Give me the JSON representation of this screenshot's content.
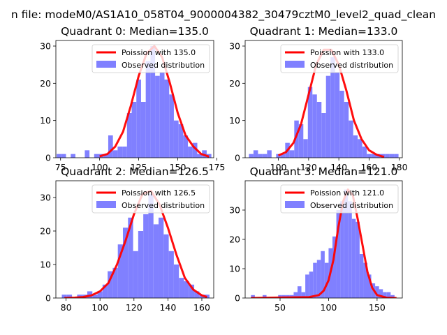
{
  "figure_title": "n file: modeM0/AS1A10_058T04_9000004382_30479cztM0_level2_quad_clean",
  "colors": {
    "hist": "#8080ff",
    "curve": "#ff0000",
    "axis": "#000000"
  },
  "chart_data": [
    {
      "type": "bar",
      "title": "Quadrant 0: Median=135.0",
      "xlim": [
        72,
        173
      ],
      "ylim": [
        0,
        31.5
      ],
      "xticks": [
        75,
        100,
        125,
        150,
        175
      ],
      "yticks": [
        0,
        10,
        20,
        30
      ],
      "legend_position": "top-right",
      "series": [
        {
          "name": "Poission with 135.0",
          "kind": "line",
          "x": [
            100,
            105,
            110,
            115,
            120,
            125,
            130,
            135,
            140,
            145,
            150,
            155,
            160,
            165,
            170
          ],
          "y": [
            0.4,
            1,
            3,
            7,
            14,
            22,
            28,
            30,
            27,
            20,
            12,
            6,
            3,
            1,
            0.3
          ]
        },
        {
          "name": "Observed distribution",
          "kind": "histogram",
          "bins": [
            [
              74,
              1
            ],
            [
              77,
              1
            ],
            [
              80,
              0
            ],
            [
              83,
              1
            ],
            [
              86,
              0
            ],
            [
              89,
              0
            ],
            [
              92,
              2
            ],
            [
              95,
              0
            ],
            [
              98,
              1
            ],
            [
              101,
              1
            ],
            [
              104,
              1
            ],
            [
              107,
              6
            ],
            [
              110,
              2
            ],
            [
              113,
              3
            ],
            [
              116,
              3
            ],
            [
              119,
              12
            ],
            [
              122,
              15
            ],
            [
              125,
              21
            ],
            [
              128,
              15
            ],
            [
              131,
              26
            ],
            [
              134,
              30
            ],
            [
              137,
              22
            ],
            [
              140,
              23
            ],
            [
              143,
              21
            ],
            [
              146,
              17
            ],
            [
              149,
              10
            ],
            [
              152,
              9
            ],
            [
              155,
              6
            ],
            [
              158,
              3
            ],
            [
              161,
              4
            ],
            [
              164,
              1
            ],
            [
              167,
              2
            ],
            [
              170,
              1
            ]
          ]
        }
      ]
    },
    {
      "type": "bar",
      "title": "Quadrant 1: Median=133.0",
      "xlim": [
        78,
        182
      ],
      "ylim": [
        0,
        31.5
      ],
      "xticks": [
        100,
        120,
        140,
        160,
        180
      ],
      "yticks": [
        0,
        10,
        20,
        30
      ],
      "legend_position": "top-right",
      "series": [
        {
          "name": "Poission with 133.0",
          "kind": "line",
          "x": [
            100,
            105,
            110,
            115,
            120,
            125,
            130,
            135,
            140,
            145,
            150,
            155,
            160,
            165,
            170
          ],
          "y": [
            0.6,
            1.5,
            4,
            9,
            17,
            25,
            29,
            29,
            25,
            18,
            10,
            5,
            2,
            0.8,
            0.2
          ]
        },
        {
          "name": "Observed distribution",
          "kind": "histogram",
          "bins": [
            [
              82,
              1
            ],
            [
              85,
              2
            ],
            [
              88,
              1
            ],
            [
              91,
              1
            ],
            [
              94,
              2
            ],
            [
              97,
              0
            ],
            [
              100,
              1
            ],
            [
              103,
              1
            ],
            [
              106,
              4
            ],
            [
              109,
              2
            ],
            [
              112,
              10
            ],
            [
              115,
              9
            ],
            [
              118,
              5
            ],
            [
              121,
              19
            ],
            [
              124,
              17
            ],
            [
              127,
              15
            ],
            [
              130,
              12
            ],
            [
              133,
              22
            ],
            [
              136,
              27
            ],
            [
              139,
              23
            ],
            [
              142,
              18
            ],
            [
              145,
              15
            ],
            [
              148,
              10
            ],
            [
              151,
              6
            ],
            [
              154,
              5
            ],
            [
              157,
              3
            ],
            [
              160,
              1
            ],
            [
              163,
              1
            ],
            [
              166,
              1
            ],
            [
              169,
              1
            ],
            [
              172,
              1
            ],
            [
              175,
              1
            ],
            [
              178,
              1
            ]
          ]
        }
      ]
    },
    {
      "type": "bar",
      "title": "Quadrant 2: Median=126.5",
      "xlim": [
        74,
        167
      ],
      "ylim": [
        0,
        35.0
      ],
      "xticks": [
        80,
        100,
        120,
        140,
        160
      ],
      "yticks": [
        0,
        10,
        20,
        30
      ],
      "legend_position": "top-right",
      "series": [
        {
          "name": "Poission with 126.5",
          "kind": "line",
          "x": [
            79,
            85,
            90,
            95,
            100,
            105,
            110,
            115,
            120,
            125,
            130,
            135,
            140,
            145,
            150,
            155,
            160,
            163
          ],
          "y": [
            0,
            0.1,
            0.3,
            0.8,
            2,
            4.5,
            10,
            17,
            25,
            31,
            32,
            28,
            21,
            13,
            6,
            2.5,
            0.8,
            0.3
          ]
        },
        {
          "name": "Observed distribution",
          "kind": "histogram",
          "bins": [
            [
              79,
              1
            ],
            [
              82,
              1
            ],
            [
              85,
              0
            ],
            [
              88,
              1
            ],
            [
              91,
              1
            ],
            [
              94,
              2
            ],
            [
              97,
              1
            ],
            [
              100,
              2
            ],
            [
              103,
              4
            ],
            [
              106,
              8
            ],
            [
              109,
              9
            ],
            [
              112,
              16
            ],
            [
              115,
              21
            ],
            [
              118,
              24
            ],
            [
              121,
              14
            ],
            [
              124,
              20
            ],
            [
              127,
              25
            ],
            [
              130,
              31
            ],
            [
              133,
              22
            ],
            [
              136,
              24
            ],
            [
              139,
              19
            ],
            [
              142,
              14
            ],
            [
              145,
              10
            ],
            [
              148,
              6
            ],
            [
              151,
              5
            ],
            [
              154,
              4
            ],
            [
              157,
              2
            ],
            [
              160,
              1
            ],
            [
              163,
              1
            ]
          ]
        }
      ]
    },
    {
      "type": "bar",
      "title": "Quadrant 3: Median=121.0",
      "xlim": [
        14,
        176
      ],
      "ylim": [
        0,
        40.0
      ],
      "xticks": [
        50,
        100,
        150
      ],
      "yticks": [
        0,
        10,
        20,
        30
      ],
      "legend_position": "top-right",
      "series": [
        {
          "name": "Poission with 121.0",
          "kind": "line",
          "x": [
            20,
            80,
            90,
            95,
            100,
            105,
            110,
            115,
            120,
            125,
            130,
            135,
            140,
            145,
            150,
            160,
            170
          ],
          "y": [
            0,
            0.3,
            1,
            2.5,
            6,
            13,
            24,
            33,
            37,
            35,
            27,
            18,
            9,
            3.5,
            1,
            0.1,
            0
          ]
        },
        {
          "name": "Observed distribution",
          "kind": "histogram",
          "bins": [
            [
              22,
              1
            ],
            [
              26,
              0
            ],
            [
              30,
              0
            ],
            [
              34,
              1
            ],
            [
              38,
              0
            ],
            [
              42,
              0
            ],
            [
              46,
              0
            ],
            [
              50,
              1
            ],
            [
              54,
              1
            ],
            [
              58,
              1
            ],
            [
              62,
              1
            ],
            [
              66,
              2
            ],
            [
              70,
              4
            ],
            [
              74,
              2
            ],
            [
              78,
              8
            ],
            [
              82,
              9
            ],
            [
              86,
              12
            ],
            [
              90,
              13
            ],
            [
              94,
              16
            ],
            [
              98,
              12
            ],
            [
              102,
              17
            ],
            [
              106,
              21
            ],
            [
              110,
              30
            ],
            [
              114,
              33
            ],
            [
              118,
              37
            ],
            [
              122,
              33
            ],
            [
              126,
              27
            ],
            [
              130,
              26
            ],
            [
              134,
              15
            ],
            [
              138,
              12
            ],
            [
              142,
              8
            ],
            [
              146,
              5
            ],
            [
              150,
              4
            ],
            [
              154,
              3
            ],
            [
              158,
              2
            ],
            [
              162,
              2
            ],
            [
              166,
              1
            ]
          ]
        }
      ]
    }
  ]
}
